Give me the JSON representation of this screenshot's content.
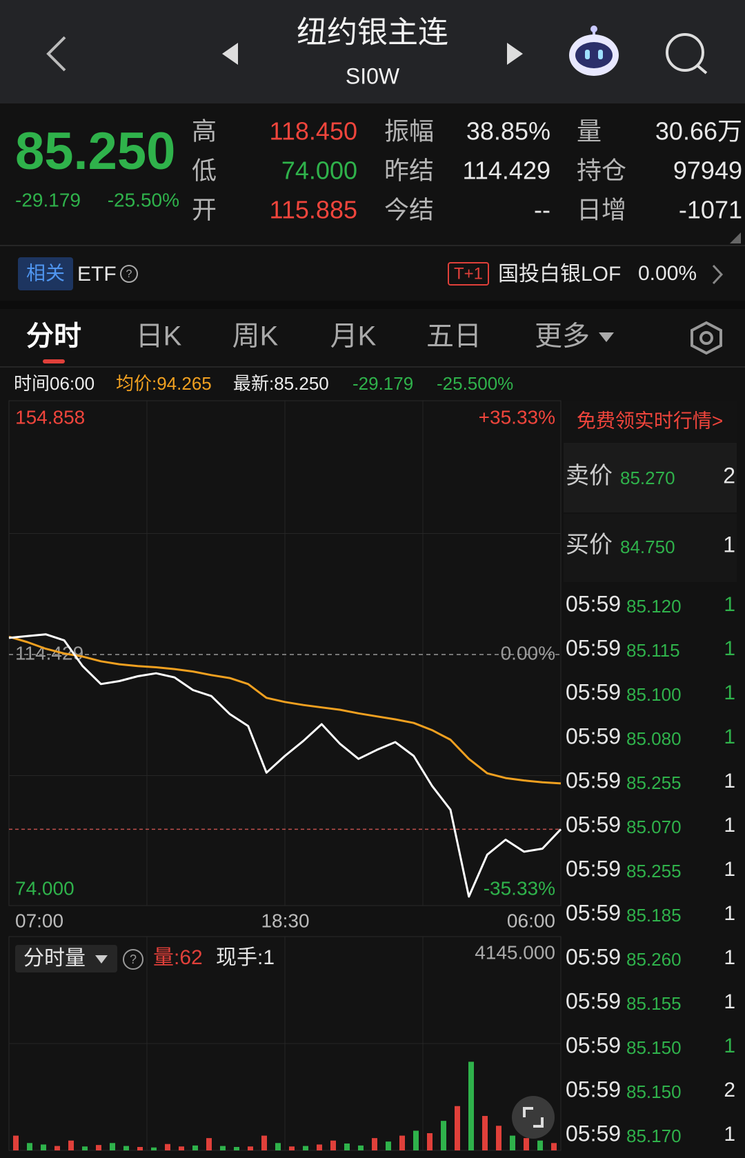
{
  "header": {
    "title": "纽约银主连",
    "code": "SI0W"
  },
  "quote": {
    "price": "85.250",
    "change": "-29.179",
    "change_pct": "-25.50%",
    "color": "#2fb24b",
    "stats": [
      {
        "label": "高",
        "value": "118.450",
        "color": "#f0453c"
      },
      {
        "label": "低",
        "value": "74.000",
        "color": "#2fb24b"
      },
      {
        "label": "开",
        "value": "115.885",
        "color": "#f0453c"
      },
      {
        "label": "振幅",
        "value": "38.85%",
        "color": "#e8e8e8"
      },
      {
        "label": "昨结",
        "value": "114.429",
        "color": "#e8e8e8"
      },
      {
        "label": "今结",
        "value": "--",
        "color": "#e8e8e8"
      },
      {
        "label": "量",
        "value": "30.66万",
        "color": "#e8e8e8"
      },
      {
        "label": "持仓",
        "value": "97949",
        "color": "#e8e8e8"
      },
      {
        "label": "日增",
        "value": "-1071",
        "color": "#e8e8e8"
      }
    ]
  },
  "etf": {
    "tag": "相关",
    "label": "ETF",
    "badge": "T+1",
    "name": "国投白银LOF",
    "pct": "0.00%"
  },
  "tabs": {
    "items": [
      "分时",
      "日K",
      "周K",
      "月K",
      "五日",
      "更多"
    ],
    "active": 0
  },
  "info": {
    "time": "时间06:00",
    "avg": "均价:94.265",
    "last": "最新:85.250",
    "change": "-29.179",
    "pct": "-25.500%"
  },
  "chart_data": [
    {
      "type": "line",
      "ylim": [
        74,
        154.858
      ],
      "yticks": [
        {
          "value": 74,
          "label": "74.000"
        },
        114.429,
        154.858
      ],
      "y2ticks": [
        {
          "value": 74,
          "label": "-35.33%"
        },
        {
          "value": 114.429,
          "label": "0.00%"
        },
        {
          "value": 154.858,
          "label": "+35.33%"
        }
      ],
      "tick_colors": [
        "#2fb24b",
        "#9a9a9a",
        "#f0453c"
      ],
      "xticks": [
        "07:00",
        "18:30",
        "06:00"
      ],
      "series": [
        {
          "color": "#ffffff",
          "values": [
            117.2,
            117.5,
            117.8,
            116.8,
            112.5,
            109.5,
            110.0,
            110.8,
            111.3,
            110.6,
            108.5,
            107.5,
            104.5,
            102.5,
            94.7,
            97.5,
            100.0,
            102.8,
            99.5,
            97.0,
            98.5,
            99.8,
            97.5,
            92.5,
            88.5,
            74.0,
            81.0,
            83.5,
            81.5,
            82.0,
            85.25
          ]
        },
        {
          "color": "#f0a020",
          "values": [
            117.4,
            116.5,
            115.4,
            114.6,
            114.1,
            113.3,
            112.8,
            112.5,
            112.3,
            112.0,
            111.6,
            111.0,
            110.5,
            109.5,
            107.2,
            106.5,
            106.0,
            105.6,
            105.2,
            104.6,
            104.1,
            103.6,
            103.0,
            101.8,
            100.2,
            97.0,
            94.6,
            93.8,
            93.4,
            93.1,
            92.9
          ]
        }
      ]
    },
    {
      "type": "bar",
      "selector": "分时量",
      "volume_label": "量:62",
      "hand_label": "现手:1",
      "ylim": [
        0,
        4145
      ],
      "yticks": [
        {
          "value": 4145,
          "label": "4145.000"
        }
      ],
      "values": [
        300,
        150,
        120,
        90,
        200,
        80,
        110,
        150,
        90,
        70,
        60,
        130,
        80,
        100,
        250,
        90,
        70,
        80,
        300,
        150,
        80,
        90,
        120,
        200,
        140,
        100,
        250,
        180,
        300,
        400,
        350,
        600,
        900,
        1800,
        700,
        500,
        300,
        250,
        200,
        150
      ],
      "colors": [
        "#e0403a",
        "#2fb24b",
        "#2fb24b",
        "#e0403a",
        "#e0403a",
        "#2fb24b",
        "#e0403a",
        "#2fb24b",
        "#2fb24b",
        "#e0403a",
        "#2fb24b",
        "#e0403a",
        "#e0403a",
        "#2fb24b",
        "#e0403a",
        "#2fb24b",
        "#2fb24b",
        "#e0403a",
        "#e0403a",
        "#2fb24b",
        "#e0403a",
        "#2fb24b",
        "#e0403a",
        "#e0403a",
        "#2fb24b",
        "#2fb24b",
        "#e0403a",
        "#2fb24b",
        "#e0403a",
        "#2fb24b",
        "#e0403a",
        "#2fb24b",
        "#e0403a",
        "#2fb24b",
        "#e0403a",
        "#e0403a",
        "#2fb24b",
        "#e0403a",
        "#2fb24b",
        "#e0403a"
      ]
    }
  ],
  "order_book": {
    "title": "免费领实时行情>",
    "quotes": [
      {
        "label": "卖价",
        "price": "85.270",
        "qty": "2"
      },
      {
        "label": "买价",
        "price": "84.750",
        "qty": "1"
      }
    ],
    "trades": [
      {
        "time": "05:59",
        "price": "85.120",
        "qty": "1",
        "color": "#2fb24b"
      },
      {
        "time": "05:59",
        "price": "85.115",
        "qty": "1",
        "color": "#2fb24b"
      },
      {
        "time": "05:59",
        "price": "85.100",
        "qty": "1",
        "color": "#2fb24b"
      },
      {
        "time": "05:59",
        "price": "85.080",
        "qty": "1",
        "color": "#2fb24b"
      },
      {
        "time": "05:59",
        "price": "85.255",
        "qty": "1",
        "color": "#e8e8e8"
      },
      {
        "time": "05:59",
        "price": "85.070",
        "qty": "1",
        "color": "#e8e8e8"
      },
      {
        "time": "05:59",
        "price": "85.255",
        "qty": "1",
        "color": "#e8e8e8"
      },
      {
        "time": "05:59",
        "price": "85.185",
        "qty": "1",
        "color": "#e8e8e8"
      },
      {
        "time": "05:59",
        "price": "85.260",
        "qty": "1",
        "color": "#e8e8e8"
      },
      {
        "time": "05:59",
        "price": "85.155",
        "qty": "1",
        "color": "#e8e8e8"
      },
      {
        "time": "05:59",
        "price": "85.150",
        "qty": "1",
        "color": "#2fb24b"
      },
      {
        "time": "05:59",
        "price": "85.150",
        "qty": "2",
        "color": "#e8e8e8"
      },
      {
        "time": "05:59",
        "price": "85.170",
        "qty": "1",
        "color": "#e8e8e8"
      }
    ]
  }
}
